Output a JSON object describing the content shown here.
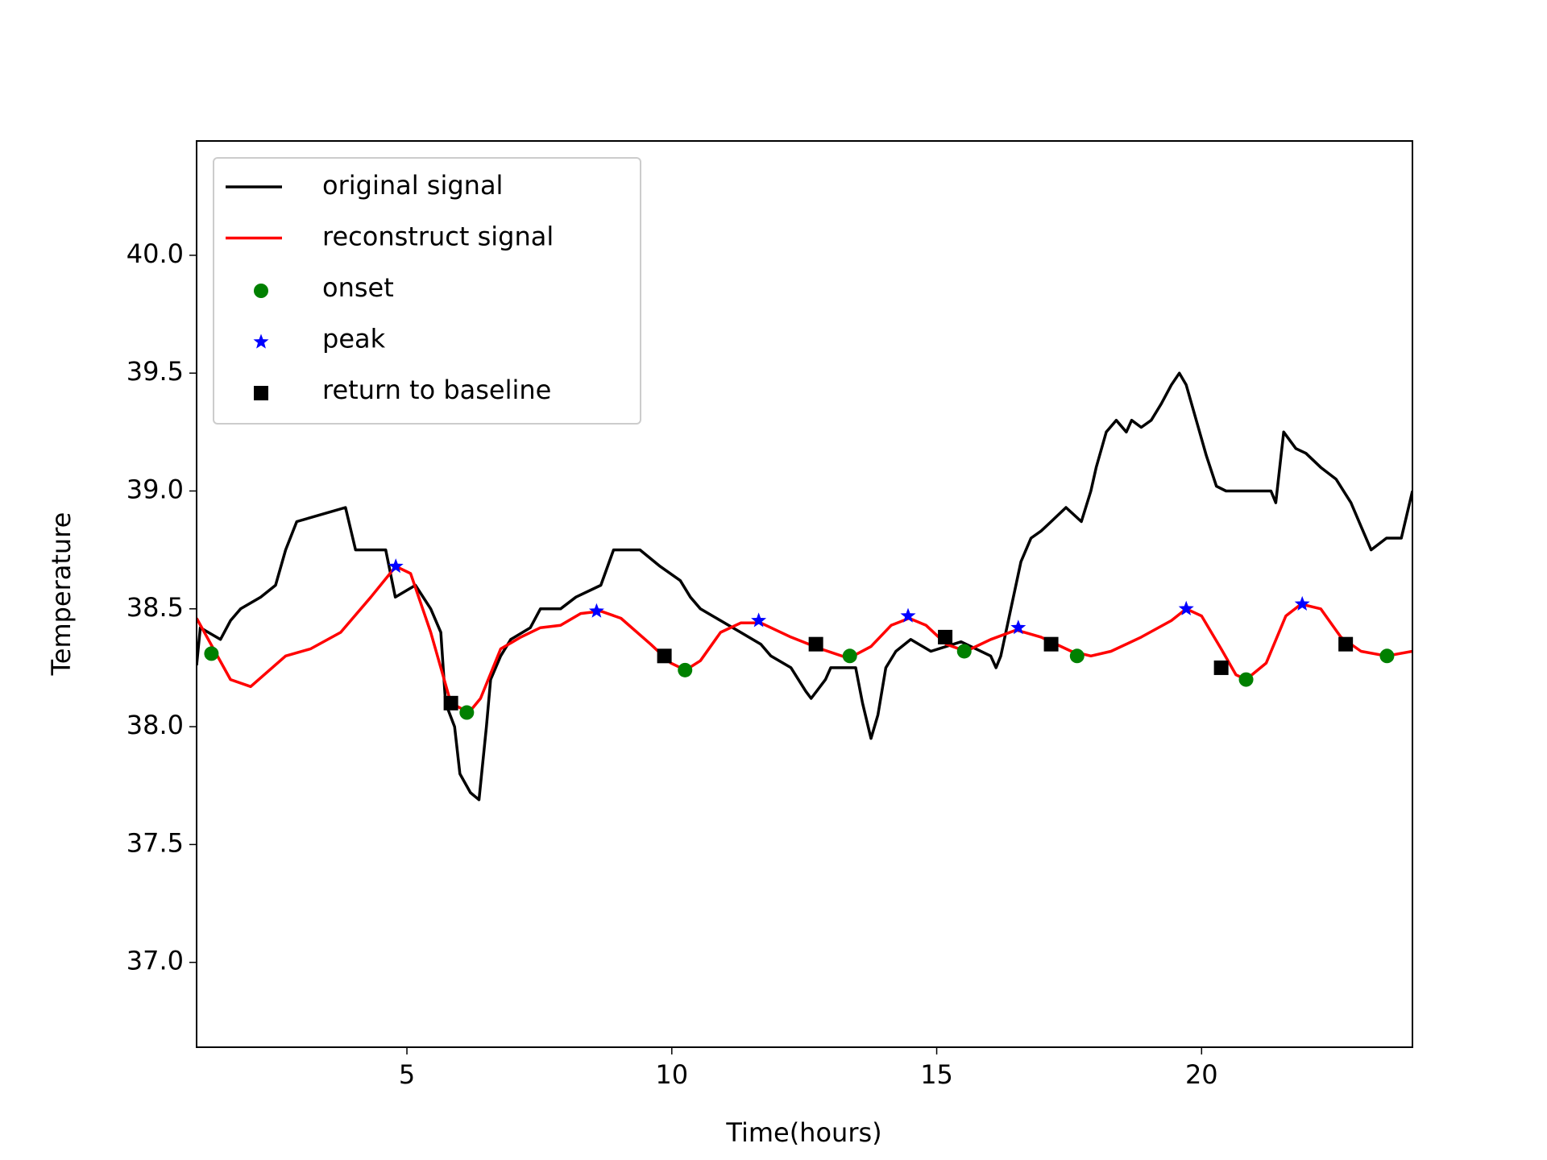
{
  "chart_data": {
    "type": "line",
    "x_label": "Time(hours)",
    "y_label": "Temperature",
    "xlim": [
      1.03,
      23.98
    ],
    "ylim": [
      36.64,
      40.485
    ],
    "xticks": [
      5,
      10,
      15,
      20
    ],
    "yticks": [
      {
        "value": 37,
        "label": "37.0"
      },
      37.5,
      {
        "value": 38,
        "label": "38.0"
      },
      38.5,
      {
        "value": 39,
        "label": "39.0"
      },
      39.5,
      {
        "value": 40,
        "label": "40.0"
      }
    ],
    "grid": false,
    "legend": "upper left",
    "series": [
      {
        "name": "original signal",
        "type": "line",
        "color": "#000000",
        "x": [
          1.03,
          1.1,
          1.48,
          1.67,
          1.86,
          2.24,
          2.52,
          2.71,
          2.92,
          3.84,
          4.03,
          4.6,
          4.78,
          5.16,
          5.45,
          5.64,
          5.73,
          5.9,
          6.0,
          6.2,
          6.36,
          6.5,
          6.58,
          6.77,
          6.96,
          7.33,
          7.52,
          7.9,
          8.19,
          8.66,
          8.9,
          9.4,
          9.78,
          10.16,
          10.35,
          10.54,
          10.92,
          11.3,
          11.68,
          11.87,
          12.25,
          12.53,
          12.63,
          12.9,
          13.0,
          13.47,
          13.6,
          13.76,
          13.89,
          14.04,
          14.23,
          14.51,
          14.89,
          15.46,
          16.02,
          16.12,
          16.21,
          16.4,
          16.59,
          16.78,
          16.97,
          17.16,
          17.44,
          17.73,
          17.91,
          18.01,
          18.2,
          18.39,
          18.58,
          18.68,
          18.86,
          19.05,
          19.24,
          19.43,
          19.58,
          19.71,
          19.9,
          20.09,
          20.28,
          20.46,
          21.31,
          21.4,
          21.55,
          21.78,
          21.97,
          22.25,
          22.54,
          22.82,
          23.01,
          23.2,
          23.49,
          23.77,
          23.98
        ],
        "values": [
          38.26,
          38.42,
          38.37,
          38.45,
          38.5,
          38.55,
          38.6,
          38.75,
          38.87,
          38.93,
          38.75,
          38.75,
          38.55,
          38.6,
          38.5,
          38.4,
          38.1,
          38.0,
          37.8,
          37.72,
          37.69,
          38.0,
          38.2,
          38.3,
          38.37,
          38.42,
          38.5,
          38.5,
          38.55,
          38.6,
          38.75,
          38.75,
          38.68,
          38.62,
          38.55,
          38.5,
          38.45,
          38.4,
          38.35,
          38.3,
          38.25,
          38.15,
          38.12,
          38.2,
          38.25,
          38.25,
          38.1,
          37.95,
          38.05,
          38.25,
          38.32,
          38.37,
          38.32,
          38.36,
          38.3,
          38.25,
          38.3,
          38.5,
          38.7,
          38.8,
          38.83,
          38.87,
          38.93,
          38.87,
          39.0,
          39.1,
          39.25,
          39.3,
          39.25,
          39.3,
          39.27,
          39.3,
          39.37,
          39.45,
          39.5,
          39.45,
          39.3,
          39.15,
          39.02,
          39.0,
          39.0,
          38.95,
          39.25,
          39.18,
          39.16,
          39.1,
          39.05,
          38.95,
          38.85,
          38.75,
          38.8,
          38.8,
          39.0
        ]
      },
      {
        "name": "reconstruct signal",
        "type": "line",
        "color": "#ff0000",
        "x": [
          1.03,
          1.67,
          2.05,
          2.71,
          3.18,
          3.75,
          4.32,
          4.79,
          5.07,
          5.45,
          5.83,
          6.17,
          6.39,
          6.77,
          7.15,
          7.52,
          7.9,
          8.28,
          8.66,
          9.04,
          9.6,
          9.98,
          10.26,
          10.54,
          10.92,
          11.3,
          11.68,
          12.25,
          12.81,
          13.34,
          13.76,
          14.14,
          14.48,
          14.8,
          15.18,
          15.55,
          16.02,
          16.5,
          16.97,
          17.54,
          17.91,
          18.29,
          18.86,
          19.43,
          19.71,
          20.0,
          20.37,
          20.65,
          20.84,
          21.22,
          21.59,
          21.88,
          22.25,
          22.63,
          23.01,
          23.49,
          23.98
        ],
        "values": [
          38.46,
          38.2,
          38.17,
          38.3,
          38.33,
          38.4,
          38.55,
          38.68,
          38.65,
          38.4,
          38.1,
          38.06,
          38.12,
          38.33,
          38.38,
          38.42,
          38.43,
          38.48,
          38.49,
          38.46,
          38.35,
          38.27,
          38.24,
          38.28,
          38.4,
          38.44,
          38.44,
          38.38,
          38.33,
          38.29,
          38.34,
          38.43,
          38.46,
          38.43,
          38.35,
          38.32,
          38.37,
          38.41,
          38.38,
          38.32,
          38.3,
          38.32,
          38.38,
          38.45,
          38.5,
          38.47,
          38.33,
          38.22,
          38.2,
          38.27,
          38.47,
          38.52,
          38.5,
          38.38,
          38.32,
          38.3,
          38.32
        ]
      },
      {
        "name": "onset",
        "type": "scatter",
        "marker": "circle",
        "color": "#008000",
        "x": [
          1.31,
          6.13,
          10.25,
          13.36,
          15.52,
          17.65,
          20.84,
          23.5
        ],
        "values": [
          38.31,
          38.06,
          38.24,
          38.3,
          38.32,
          38.3,
          38.2,
          38.3
        ]
      },
      {
        "name": "peak",
        "type": "scatter",
        "marker": "star",
        "color": "#0000ff",
        "x": [
          4.79,
          8.58,
          11.64,
          14.46,
          16.54,
          19.71,
          21.9
        ],
        "values": [
          38.68,
          38.49,
          38.45,
          38.47,
          38.42,
          38.5,
          38.52
        ]
      },
      {
        "name": "return to baseline",
        "type": "scatter",
        "marker": "square",
        "color": "#000000",
        "x": [
          5.83,
          9.86,
          12.72,
          15.16,
          17.16,
          20.37,
          22.72
        ],
        "values": [
          38.1,
          38.3,
          38.35,
          38.38,
          38.35,
          38.25,
          38.35
        ]
      }
    ]
  }
}
